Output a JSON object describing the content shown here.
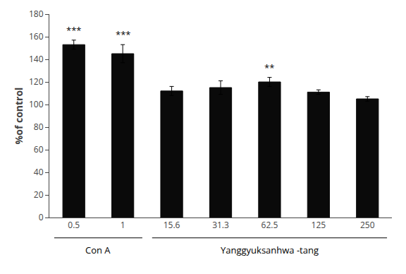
{
  "chart_data": {
    "type": "bar",
    "categories": [
      "0.5",
      "1",
      "15.6",
      "31.3",
      "62.5",
      "125",
      "250"
    ],
    "values": [
      153,
      145,
      112,
      115,
      120,
      111,
      105
    ],
    "errors": [
      4,
      8,
      4,
      6,
      4,
      2,
      2
    ],
    "color": "#0a0a0a",
    "ylabel": "%of control",
    "ylim": [
      0,
      180
    ],
    "yticks": [
      0,
      20,
      40,
      60,
      80,
      100,
      120,
      140,
      160,
      180
    ],
    "grid": false,
    "annotations": [
      {
        "category": "0.5",
        "text": "***"
      },
      {
        "category": "1",
        "text": "***"
      },
      {
        "category": "62.5",
        "text": "**"
      }
    ],
    "groups": [
      {
        "name": "Con A",
        "categories": [
          "0.5",
          "1"
        ]
      },
      {
        "name": "Yanggyuksanhwa -tang",
        "categories": [
          "15.6",
          "31.3",
          "62.5",
          "125",
          "250"
        ]
      }
    ]
  }
}
